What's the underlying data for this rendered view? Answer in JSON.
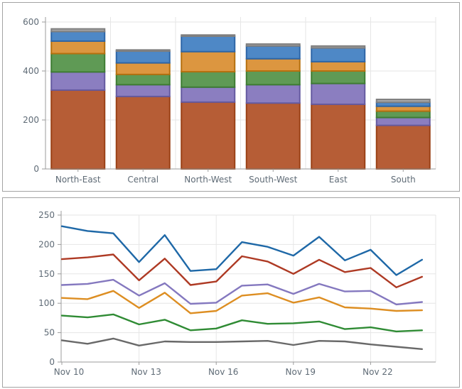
{
  "page": {
    "background": "#ffffff",
    "panel_border_color": "#a3a3a3",
    "gridline_color": "#e6e6e6",
    "axis_line_color": "#9b9b9b",
    "tick_color": "#9b9b9b",
    "label_color": "#5f6b76"
  },
  "chart_data": [
    {
      "type": "bar",
      "stacked": true,
      "title": "",
      "xlabel": "",
      "ylabel": "",
      "categories": [
        "North-East",
        "Central",
        "North-West",
        "South-West",
        "East",
        "South"
      ],
      "series": [
        {
          "name": "segment-sienna",
          "color": "#b65d36",
          "border": "#9a4116",
          "values": [
            322,
            296,
            273,
            269,
            264,
            178
          ]
        },
        {
          "name": "segment-purple",
          "color": "#8b7ec0",
          "border": "#655aa0",
          "values": [
            74,
            48,
            61,
            75,
            85,
            32
          ]
        },
        {
          "name": "segment-green",
          "color": "#5f9a55",
          "border": "#3e7c33",
          "values": [
            75,
            42,
            63,
            56,
            51,
            26
          ]
        },
        {
          "name": "segment-orange",
          "color": "#dc9640",
          "border": "#b5700f",
          "values": [
            51,
            47,
            82,
            50,
            38,
            20
          ]
        },
        {
          "name": "segment-blue",
          "color": "#4e88c6",
          "border": "#2e66a7",
          "values": [
            39,
            48,
            63,
            52,
            56,
            16
          ]
        },
        {
          "name": "segment-gray",
          "color": "#a6a6a6",
          "border": "#7f7f7f",
          "values": [
            11,
            5,
            5,
            8,
            8,
            12
          ]
        }
      ],
      "ylim": [
        0,
        600
      ],
      "ytick_labels": [
        "0",
        "200",
        "400",
        "600"
      ],
      "yticks": [
        0,
        200,
        400,
        600
      ],
      "grid": true,
      "legend": "none"
    },
    {
      "type": "line",
      "title": "",
      "xlabel": "",
      "ylabel": "",
      "n_points": 15,
      "x_first_label": "Nov 10",
      "xtick_labels": [
        "Nov 10",
        "Nov 13",
        "Nov 16",
        "Nov 19",
        "Nov 22"
      ],
      "xtick_indices": [
        0,
        3,
        6,
        9,
        12
      ],
      "series": [
        {
          "name": "line-blue",
          "color": "#1e68a7",
          "values": [
            231,
            223,
            219,
            170,
            216,
            155,
            158,
            204,
            196,
            181,
            213,
            173,
            191,
            148,
            174
          ]
        },
        {
          "name": "line-red",
          "color": "#ae3a24",
          "values": [
            175,
            178,
            183,
            139,
            176,
            131,
            137,
            180,
            171,
            150,
            174,
            153,
            160,
            127,
            145
          ]
        },
        {
          "name": "line-purple",
          "color": "#8478bf",
          "values": [
            131,
            133,
            140,
            113,
            134,
            99,
            101,
            130,
            132,
            116,
            133,
            120,
            121,
            98,
            102
          ]
        },
        {
          "name": "line-orange",
          "color": "#dd8e22",
          "values": [
            109,
            107,
            121,
            92,
            118,
            83,
            87,
            113,
            117,
            101,
            110,
            93,
            91,
            87,
            88
          ]
        },
        {
          "name": "line-green",
          "color": "#2f8b34",
          "values": [
            79,
            76,
            81,
            64,
            72,
            54,
            57,
            71,
            65,
            66,
            69,
            56,
            59,
            52,
            54
          ]
        },
        {
          "name": "line-gray",
          "color": "#696969",
          "values": [
            37,
            31,
            40,
            28,
            35,
            34,
            34,
            35,
            36,
            29,
            36,
            35,
            30,
            26,
            22
          ]
        }
      ],
      "ylim": [
        0,
        250
      ],
      "ytick_labels": [
        "0",
        "50",
        "100",
        "150",
        "200",
        "250"
      ],
      "yticks": [
        0,
        50,
        100,
        150,
        200,
        250
      ],
      "grid": true,
      "legend": "none"
    }
  ]
}
